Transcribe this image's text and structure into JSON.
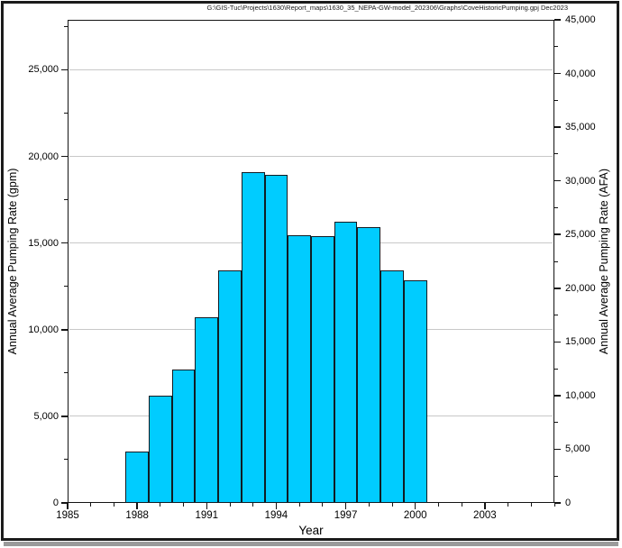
{
  "window": {
    "title_path": "G:\\GIS-Tuc\\Projects\\1630\\Report_maps\\1630_35_NEPA-GW-model_202306\\Graphs\\CoveHistoricPumping.gpj Dec2023"
  },
  "chart_data": {
    "type": "bar",
    "title": "",
    "xlabel": "Year",
    "ylabel_left": "Annual Average Pumping Rate (gpm)",
    "ylabel_right": "Annual Average Pumping Rate (AFA)",
    "x_domain": [
      1985,
      2006
    ],
    "x_minor_step": 1,
    "x_major_ticks": [
      1985,
      1988,
      1991,
      1994,
      1997,
      2000,
      2003
    ],
    "x_major_labels": [
      "1985",
      "1988",
      "1991",
      "1994",
      "1997",
      "2000",
      "2003"
    ],
    "ylim_left": [
      0,
      27886
    ],
    "left_major_step": 5000,
    "left_minor_step": 2500,
    "left_tick_values": [
      0,
      5000,
      10000,
      15000,
      20000,
      25000
    ],
    "left_tick_labels": [
      "0",
      "5,000",
      "10,000",
      "15,000",
      "20,000",
      "25,000"
    ],
    "ylim_right": [
      0,
      45000
    ],
    "right_major_step": 5000,
    "right_minor_step": 2500,
    "right_tick_values": [
      0,
      5000,
      10000,
      15000,
      20000,
      25000,
      30000,
      35000,
      40000,
      45000
    ],
    "right_tick_labels": [
      "0",
      "5,000",
      "10,000",
      "15,000",
      "20,000",
      "25,000",
      "30,000",
      "35,000",
      "40,000",
      "45,000"
    ],
    "grid": "horizontal-at-left-major-ticks",
    "legend": "none",
    "bar_width_years": 1,
    "categories": [
      1988,
      1989,
      1990,
      1991,
      1992,
      1993,
      1994,
      1995,
      1996,
      1997,
      1998,
      1999,
      2000
    ],
    "values": [
      2950,
      6200,
      7700,
      10700,
      13400,
      19100,
      18950,
      15450,
      15400,
      16250,
      15900,
      13400,
      12850
    ],
    "series_name": "Annual Average Pumping Rate (gpm)"
  },
  "colors": {
    "bar_fill": "#00CCFF",
    "bar_outline": "#101C24",
    "gridline": "#C8C8C8",
    "axis": "#141414",
    "frame": "#1B1B1B",
    "frame_shadow": "#9B9B9B",
    "background": "#FFFFFF"
  }
}
